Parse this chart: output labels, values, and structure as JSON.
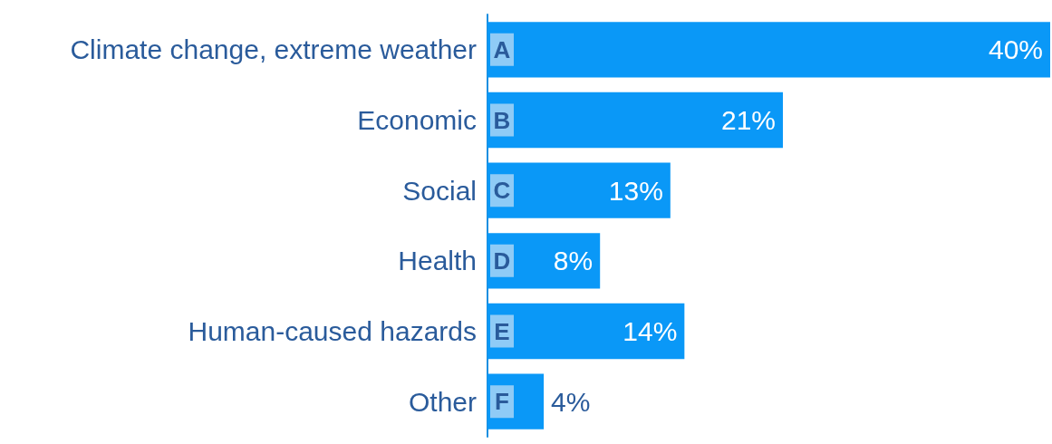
{
  "chart_data": {
    "type": "bar",
    "orientation": "horizontal",
    "categories": [
      "Climate change, extreme weather",
      "Economic",
      "Social",
      "Health",
      "Human-caused hazards",
      "Other"
    ],
    "values": [
      40,
      21,
      13,
      8,
      14,
      4
    ],
    "value_labels": [
      "40%",
      "21%",
      "13%",
      "8%",
      "14%",
      "4%"
    ],
    "color": "#0a98f7",
    "grid": false,
    "tick_labels": "y",
    "annotations": [
      {
        "text": "A",
        "y": "Climate change, extreme weather"
      },
      {
        "text": "B",
        "y": "Economic"
      },
      {
        "text": "C",
        "y": "Social"
      },
      {
        "text": "D",
        "y": "Health"
      },
      {
        "text": "E",
        "y": "Human-caused hazards"
      },
      {
        "text": "F",
        "y": "Other"
      }
    ]
  }
}
